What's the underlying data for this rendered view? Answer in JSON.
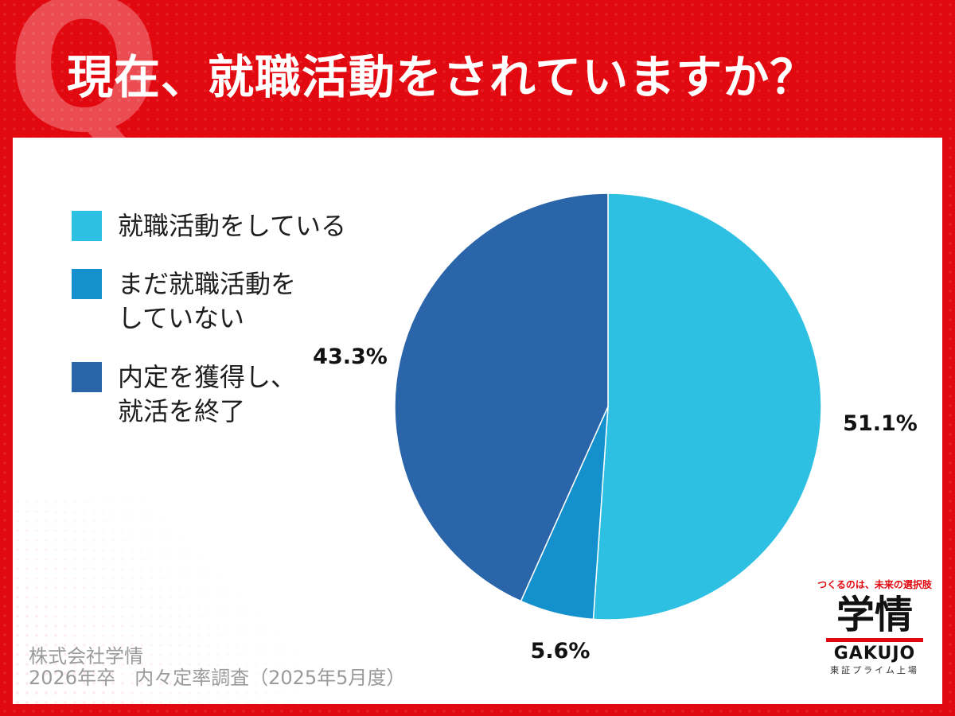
{
  "header": {
    "title": "現在、就職活動をされていますか？",
    "q_mark": "Q"
  },
  "chart_data": {
    "type": "pie",
    "categories": [
      "就職活動をしている",
      "まだ就職活動を\nしていない",
      "内定を獲得し、\n就活を終了"
    ],
    "values": [
      51.1,
      5.6,
      43.3
    ],
    "value_labels": [
      "51.1%",
      "5.6%",
      "43.3%"
    ],
    "colors": [
      "#2ec0e2",
      "#1491cc",
      "#2965a8"
    ],
    "start_angle_deg": 0,
    "direction": "clockwise",
    "legend_position": "left"
  },
  "source": {
    "line1": "株式会社学情",
    "line2": "2026年卒　内々定率調査（2025年5月度）"
  },
  "logo": {
    "tagline": "つくるのは、未来の選択肢",
    "brand_jp": "学情",
    "brand_en": "GAKUJO",
    "sub": "東証プライム上場"
  }
}
